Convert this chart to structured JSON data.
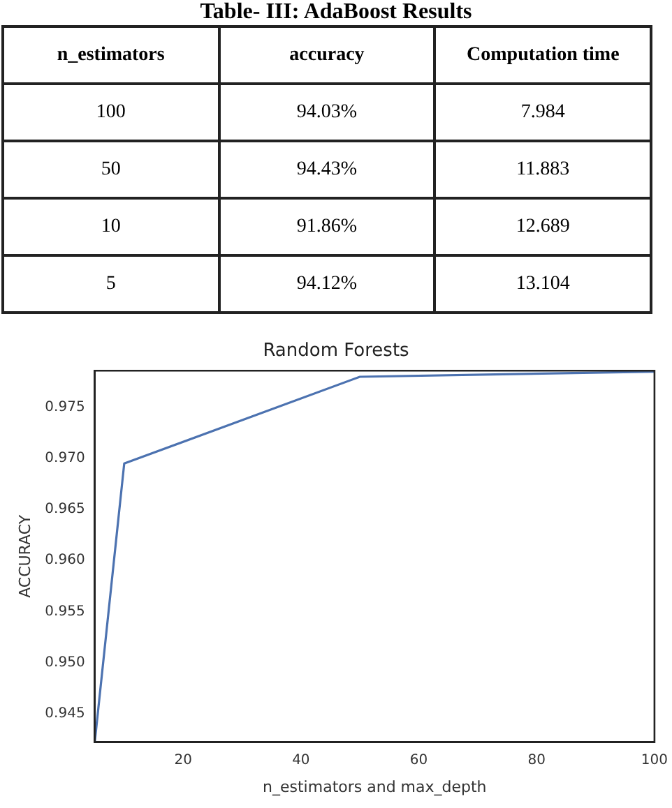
{
  "chart_data": [
    {
      "type": "other",
      "title": "Table- III: AdaBoost Results",
      "annotations": [
        "n_estimators",
        "accuracy",
        "Computation time",
        "100",
        "94.03%",
        "7.984",
        "50",
        "94.43%",
        "11.883",
        "10",
        "91.86%",
        "12.689",
        "5",
        "94.12%",
        "13.104"
      ]
    },
    {
      "type": "line",
      "title": "Random Forests",
      "xlabel": "n_estimators and max_depth",
      "ylabel": "ACCURACY",
      "x": [
        5,
        10,
        50,
        100
      ],
      "series": [
        {
          "color": "#4c72b0",
          "values": [
            0.9422,
            0.9695,
            0.978,
            0.9785
          ]
        }
      ],
      "xlim": [
        5,
        100
      ],
      "xticks": [
        20,
        40,
        60,
        80,
        100
      ],
      "ylim": [
        0.9422,
        0.9786
      ],
      "yticks": [
        0.945,
        {
          "value": 0.95,
          "label": "0.950"
        },
        0.955,
        {
          "value": 0.96,
          "label": "0.960"
        },
        0.965,
        {
          "value": 0.97,
          "label": "0.970"
        },
        0.975
      ],
      "grid": false,
      "legend": false,
      "marker": "none",
      "line_style": "solid"
    }
  ]
}
